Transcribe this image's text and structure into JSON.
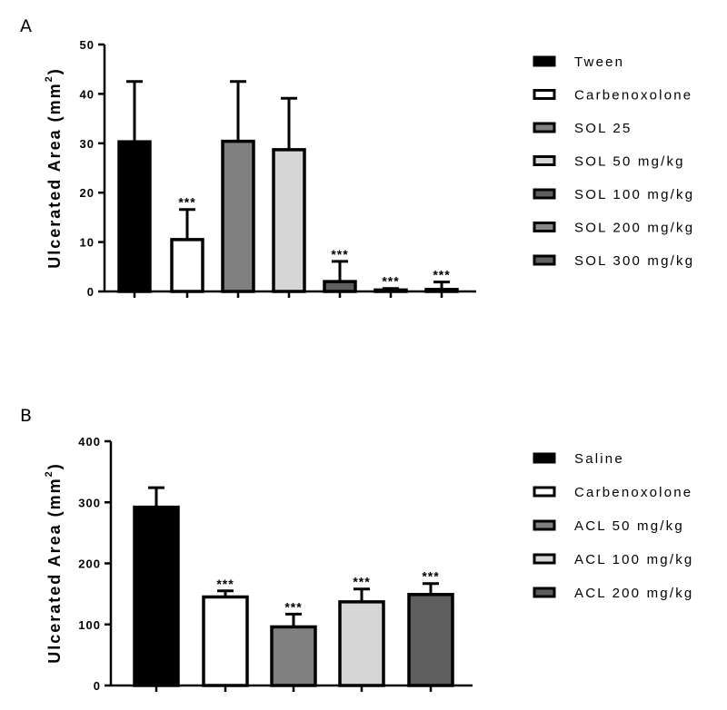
{
  "chart_data": [
    {
      "panel": "A",
      "type": "bar",
      "ylabel": "Ulcerated Area (mm",
      "ylabel_sup": "2",
      "ylabel_tail": ")",
      "ylim": [
        0,
        50
      ],
      "yticks": [
        0,
        10,
        20,
        30,
        40,
        50
      ],
      "legend_position": "right",
      "categories": [
        "Tween",
        "Carbenoxolone",
        "SOL 25",
        "SOL 50 mg/kg",
        "SOL 100 mg/kg",
        "SOL 200 mg/kg",
        "SOL 300 mg/kg"
      ],
      "values": [
        30.3,
        10.5,
        30.4,
        28.7,
        2.0,
        0.3,
        0.4
      ],
      "errors": [
        12.2,
        6.1,
        12.1,
        10.4,
        4.1,
        0.3,
        1.5
      ],
      "significance": [
        "",
        "***",
        "",
        "",
        "***",
        "***",
        "***"
      ],
      "colors": [
        "#000000",
        "#ffffff",
        "#808080",
        "#d6d6d6",
        "#5e5e5e",
        "#888888",
        "#616161"
      ]
    },
    {
      "panel": "B",
      "type": "bar",
      "ylabel": "Ulcerated Area (mm",
      "ylabel_sup": "2",
      "ylabel_tail": ")",
      "ylim": [
        0,
        400
      ],
      "yticks": [
        0,
        100,
        200,
        300,
        400
      ],
      "legend_position": "right",
      "categories": [
        "Saline",
        "Carbenoxolone",
        "ACL 50 mg/kg",
        "ACL 100 mg/kg",
        "ACL 200 mg/kg"
      ],
      "values": [
        292,
        145,
        96,
        137,
        149
      ],
      "errors": [
        32,
        10,
        21,
        21,
        18
      ],
      "significance": [
        "",
        "***",
        "***",
        "***",
        "***"
      ],
      "colors": [
        "#000000",
        "#ffffff",
        "#808080",
        "#d6d6d6",
        "#5e5e5e"
      ]
    }
  ]
}
